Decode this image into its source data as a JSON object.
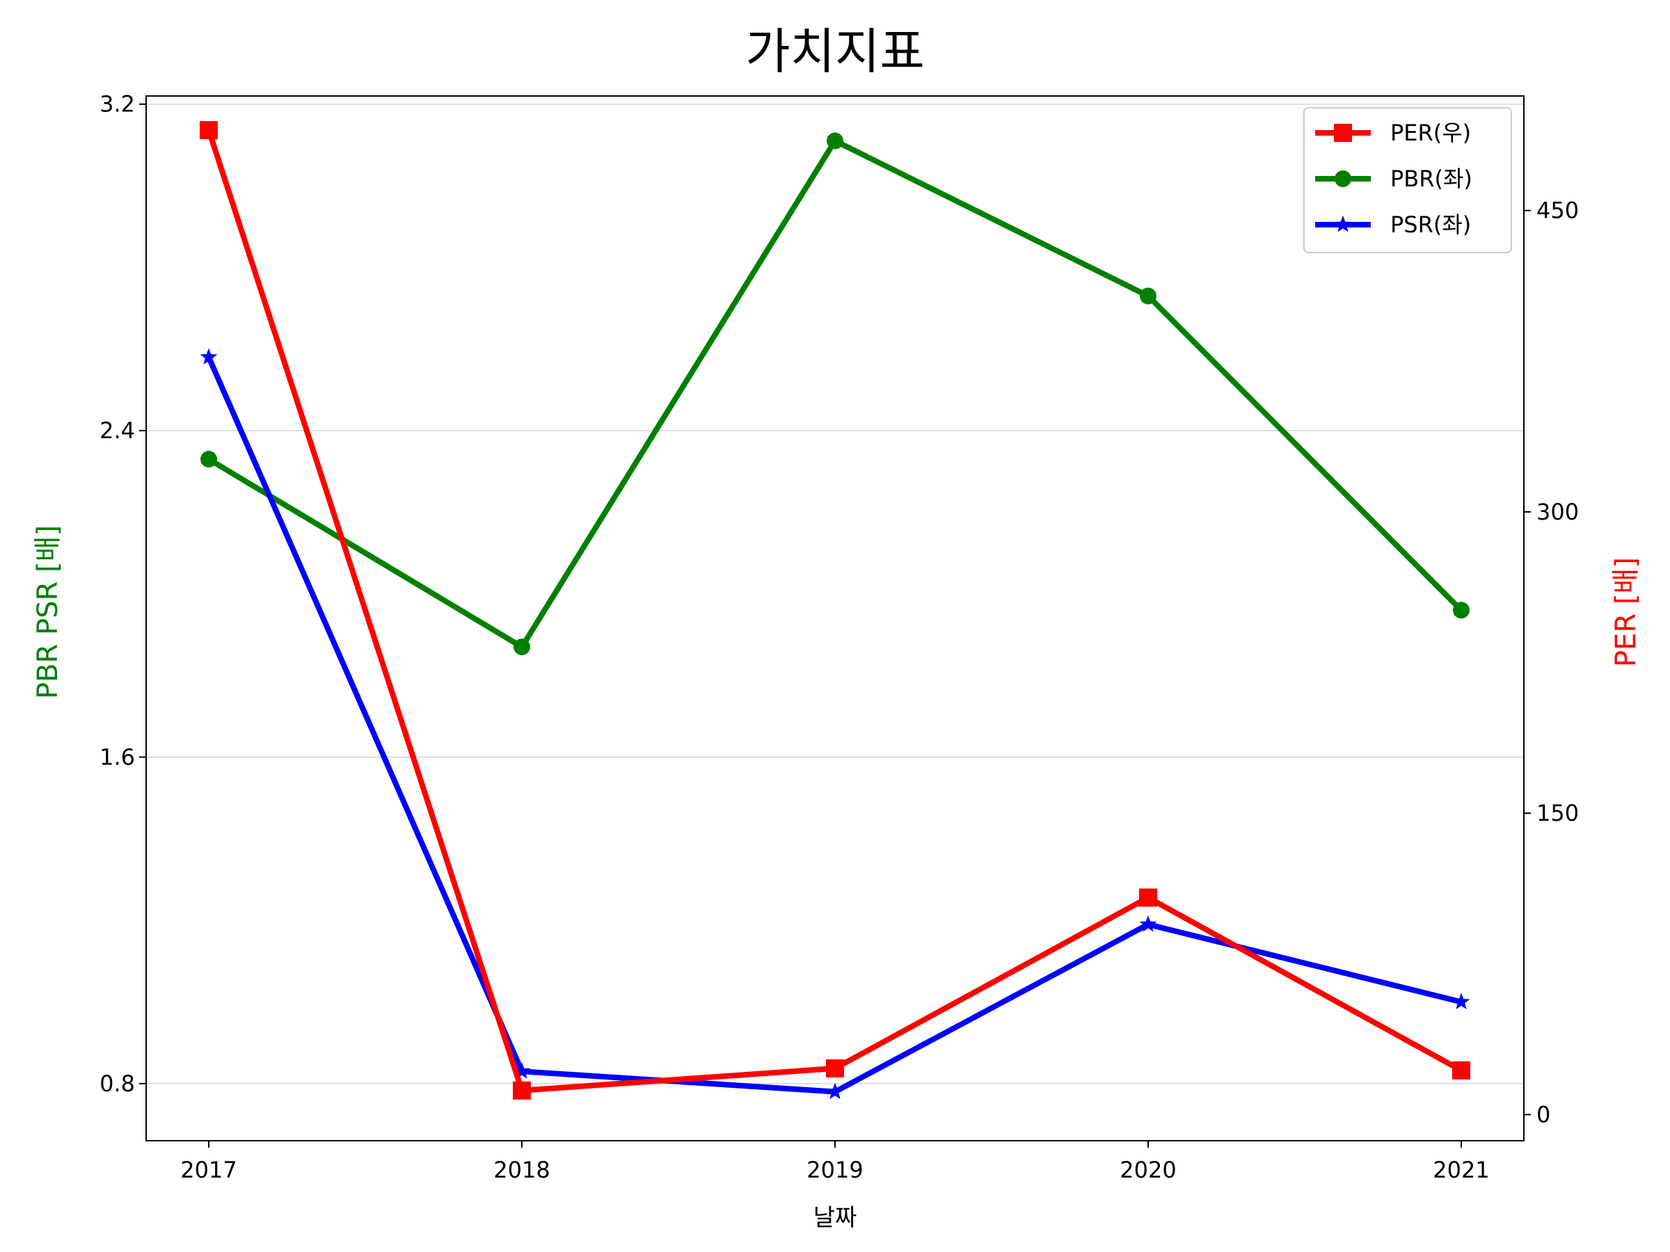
{
  "chart_data": {
    "type": "line",
    "title": "가치지표",
    "xlabel": "날짜",
    "ylabel_left": "PBR PSR [배]",
    "ylabel_right": "PER [배]",
    "ylabel_left_color": "#008000",
    "ylabel_right_color": "#ff0000",
    "x": [
      "2017",
      "2018",
      "2019",
      "2020",
      "2021"
    ],
    "ylim_left": [
      0.66,
      3.22
    ],
    "ylim_right": [
      -13,
      507
    ],
    "yticks_left": [
      "0.8",
      "1.6",
      "2.4",
      "3.2"
    ],
    "yticks_right": [
      "0",
      "150",
      "300",
      "450"
    ],
    "grid": "horizontal",
    "legend_position": "top-right",
    "series": [
      {
        "name": "PER(우)",
        "axis": "right",
        "color": "#ff0000",
        "marker": "square",
        "values": [
          490,
          12,
          23,
          108,
          22
        ]
      },
      {
        "name": "PBR(좌)",
        "axis": "left",
        "color": "#008000",
        "marker": "circle",
        "values": [
          2.33,
          1.87,
          3.11,
          2.73,
          1.96
        ]
      },
      {
        "name": "PSR(좌)",
        "axis": "left",
        "color": "#0000ff",
        "marker": "star",
        "values": [
          2.58,
          0.83,
          0.78,
          1.19,
          1.0
        ]
      }
    ]
  }
}
